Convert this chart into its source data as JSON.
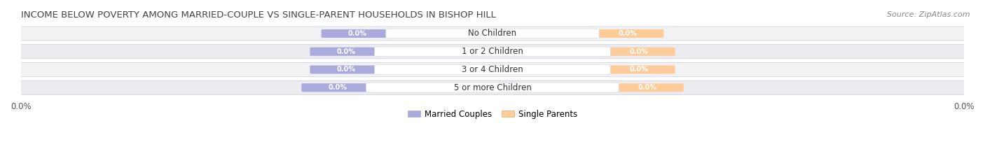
{
  "title": "INCOME BELOW POVERTY AMONG MARRIED-COUPLE VS SINGLE-PARENT HOUSEHOLDS IN BISHOP HILL",
  "source_text": "Source: ZipAtlas.com",
  "categories": [
    "No Children",
    "1 or 2 Children",
    "3 or 4 Children",
    "5 or more Children"
  ],
  "married_values": [
    0.0,
    0.0,
    0.0,
    0.0
  ],
  "single_values": [
    0.0,
    0.0,
    0.0,
    0.0
  ],
  "married_color": "#aaaadd",
  "single_color": "#ffcc99",
  "married_label": "Married Couples",
  "single_label": "Single Parents",
  "title_fontsize": 9.5,
  "source_fontsize": 8,
  "label_fontsize": 8.5,
  "tick_fontsize": 8.5,
  "background_color": "#ffffff",
  "row_light": "#f2f2f5",
  "row_dark": "#e8e8ee",
  "row_border": "#ccccdd"
}
